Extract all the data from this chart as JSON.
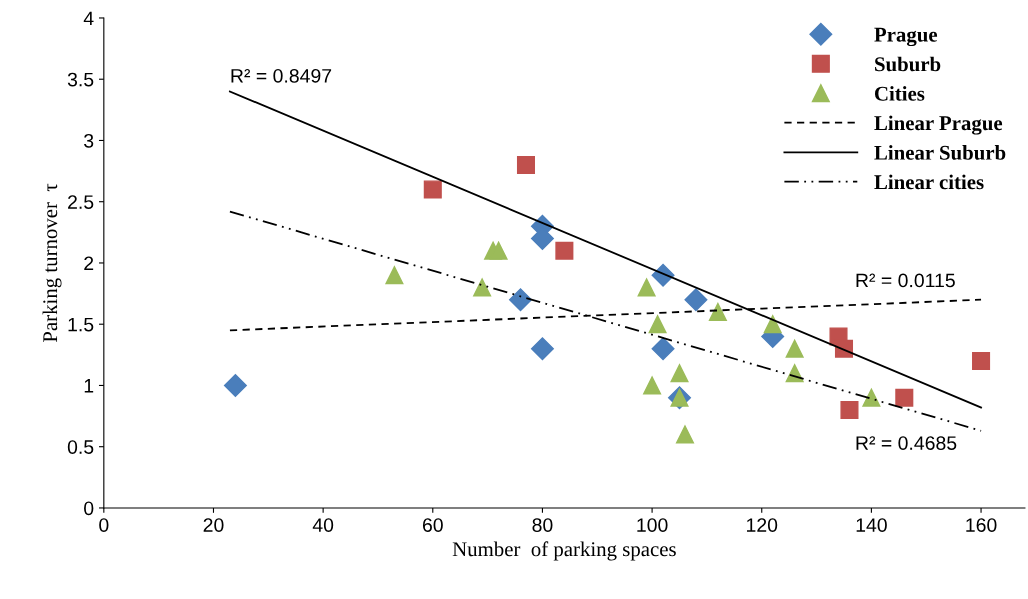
{
  "chart_data": {
    "type": "scatter",
    "xlabel": "Number  of parking spaces",
    "ylabel": "Parking turnover  τ",
    "xlim": [
      0,
      168
    ],
    "xticks": [
      0,
      20,
      40,
      60,
      80,
      100,
      120,
      140,
      160
    ],
    "ylim": [
      0,
      4
    ],
    "yticks": [
      0,
      0.5,
      1,
      1.5,
      2,
      2.5,
      3,
      3.5,
      4
    ],
    "grid": false,
    "legend": "top right",
    "series": [
      {
        "name": "Prague",
        "color": "#4a7ebb",
        "marker": "diamond",
        "x": [
          24,
          76,
          80,
          80,
          80,
          102,
          102,
          105,
          108,
          122
        ],
        "values": [
          1.0,
          1.7,
          2.3,
          2.2,
          1.3,
          1.9,
          1.3,
          0.9,
          1.7,
          1.4
        ]
      },
      {
        "name": "Suburb",
        "color": "#c0504d",
        "marker": "square",
        "x": [
          60,
          77,
          84,
          134,
          135,
          136,
          146,
          160
        ],
        "values": [
          2.6,
          2.8,
          2.1,
          1.4,
          1.3,
          0.8,
          0.9,
          1.2
        ]
      },
      {
        "name": "Cities",
        "color": "#9bbb59",
        "marker": "triangle",
        "x": [
          53,
          69,
          71,
          72,
          99,
          101,
          100,
          105,
          105,
          106,
          112,
          122,
          126,
          126,
          140
        ],
        "values": [
          1.9,
          1.8,
          2.1,
          2.1,
          1.8,
          1.5,
          1.0,
          1.1,
          0.9,
          0.6,
          1.6,
          1.5,
          1.3,
          1.1,
          0.9
        ]
      },
      {
        "name": "Linear Prague",
        "type": "line",
        "color": "#000000",
        "line_style": "dashed",
        "marker": "none",
        "x": [
          23,
          160
        ],
        "values": [
          1.45,
          1.7
        ]
      },
      {
        "name": "Linear Suburb",
        "type": "line",
        "color": "#000000",
        "line_style": "solid",
        "marker": "none",
        "x": [
          23,
          160
        ],
        "values": [
          3.4,
          0.82
        ]
      },
      {
        "name": "Linear cities",
        "type": "line",
        "color": "#000000",
        "line_style": "dashdot",
        "marker": "none",
        "x": [
          23,
          160
        ],
        "values": [
          2.42,
          0.63
        ]
      }
    ],
    "annotations": [
      "R² = 0.0115",
      "R² = 0.8497",
      "R² = 0.4685"
    ]
  }
}
